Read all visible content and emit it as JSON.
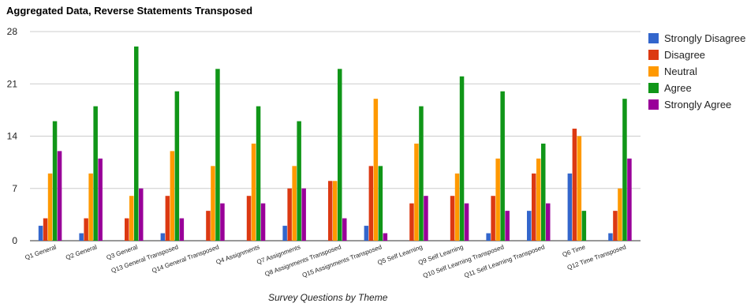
{
  "chart_data": {
    "type": "bar",
    "title": "Aggregated Data, Reverse Statements Transposed",
    "xlabel": "Survey Questions by Theme",
    "ylabel": "",
    "ylim": [
      0,
      28
    ],
    "yticks": [
      0,
      7,
      14,
      21,
      28
    ],
    "grid": true,
    "legend_position": "right",
    "categories": [
      "Q1 General",
      "Q2 General",
      "Q3 General",
      "Q13 General Transposed",
      "Q14 General Transposed",
      "Q4 Assignments",
      "Q7 Assignments",
      "Q8 Assignments Transposed",
      "Q15 Assignments Transposed",
      "Q5 Self Learning",
      "Q9 Self Learning",
      "Q10 Self Learning Transposed",
      "Q11 Self Learning Transposed",
      "Q6 Time",
      "Q12 Time Transposed"
    ],
    "series": [
      {
        "name": "Strongly Disagree",
        "color": "#3366cc",
        "values": [
          2,
          1,
          0,
          1,
          0,
          0,
          2,
          0,
          2,
          0,
          0,
          1,
          4,
          9,
          1
        ]
      },
      {
        "name": "Disagree",
        "color": "#dc3912",
        "values": [
          3,
          3,
          3,
          6,
          4,
          6,
          7,
          8,
          10,
          5,
          6,
          6,
          9,
          15,
          4
        ]
      },
      {
        "name": "Neutral",
        "color": "#ff9900",
        "values": [
          9,
          9,
          6,
          12,
          10,
          13,
          10,
          8,
          19,
          13,
          9,
          11,
          11,
          14,
          7
        ]
      },
      {
        "name": "Agree",
        "color": "#109618",
        "values": [
          16,
          18,
          26,
          20,
          23,
          18,
          16,
          23,
          10,
          18,
          22,
          20,
          13,
          4,
          19
        ]
      },
      {
        "name": "Strongly Agree",
        "color": "#990099",
        "values": [
          12,
          11,
          7,
          3,
          5,
          5,
          7,
          3,
          1,
          6,
          5,
          4,
          5,
          0,
          11
        ]
      }
    ]
  }
}
